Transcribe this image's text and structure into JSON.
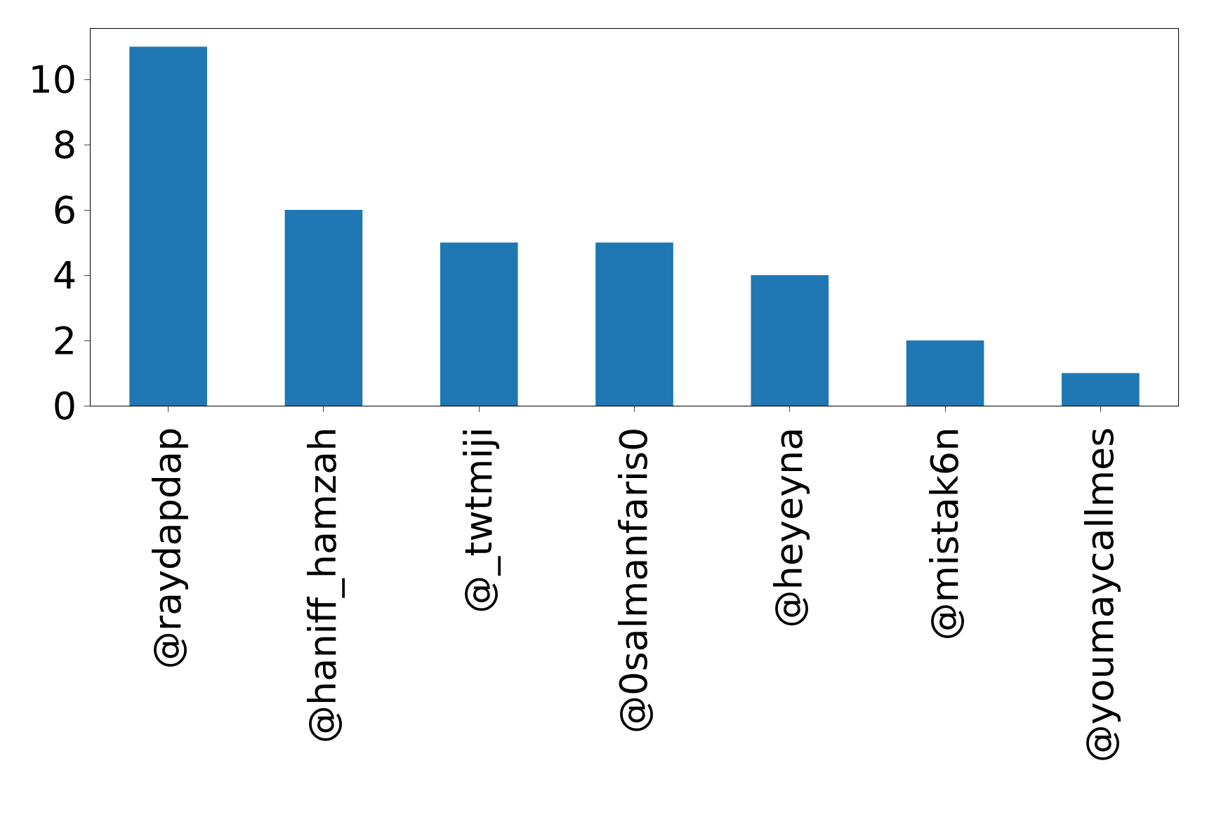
{
  "chart_data": {
    "type": "bar",
    "categories": [
      "@raydapdap",
      "@haniff_hamzah",
      "@_twtmiji",
      "@0salmanfaris0",
      "@heyeyna",
      "@mistak6n",
      "@youmaycallmes"
    ],
    "values": [
      11,
      6,
      5,
      5,
      4,
      2,
      1
    ],
    "color": "#1f77b4",
    "ylim": [
      0,
      11.55
    ],
    "yticks": [
      0,
      2,
      4,
      6,
      8,
      10
    ]
  }
}
